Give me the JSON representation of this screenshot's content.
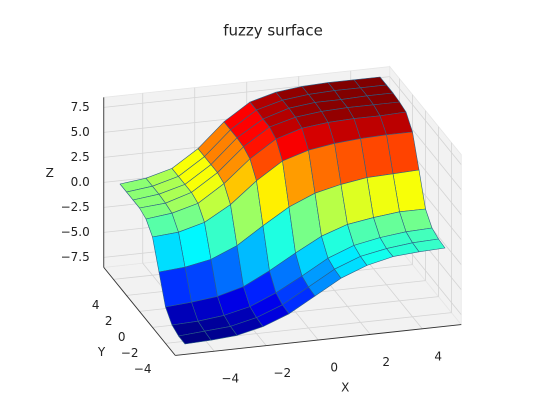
{
  "chart_data": {
    "type": "surface",
    "title": "fuzzy surface",
    "x_label": "X",
    "y_label": "Y",
    "z_label": "Z",
    "x": [
      -5,
      -4,
      -3,
      -2,
      -1,
      0,
      1,
      2,
      3,
      4,
      5
    ],
    "y": [
      -5,
      -4,
      -3,
      -2,
      -1,
      0,
      1,
      2,
      3,
      4,
      5
    ],
    "z": [
      [
        -7.9,
        -7.8,
        -7.6,
        -7.0,
        -6.0,
        -4.5,
        -3.0,
        -2.0,
        -1.4,
        -1.2,
        -1.1
      ],
      [
        -7.9,
        -7.7,
        -7.5,
        -6.9,
        -5.9,
        -4.4,
        -2.9,
        -1.9,
        -1.4,
        -1.1,
        -1.0
      ],
      [
        -7.6,
        -7.5,
        -7.2,
        -6.6,
        -5.5,
        -4.1,
        -2.6,
        -1.6,
        -1.1,
        -0.8,
        -0.7
      ],
      [
        -6.6,
        -6.4,
        -6.1,
        -5.4,
        -4.1,
        -2.6,
        -1.2,
        -0.3,
        0.1,
        0.4,
        0.4
      ],
      [
        -3.9,
        -3.7,
        -3.2,
        -2.1,
        -0.4,
        1.2,
        2.3,
        2.9,
        3.3,
        3.4,
        3.5
      ],
      [
        -1.2,
        -1.0,
        -0.3,
        1.2,
        3.3,
        5.0,
        5.8,
        6.2,
        6.4,
        6.5,
        6.5
      ],
      [
        -0.2,
        0.1,
        0.8,
        2.5,
        4.7,
        6.4,
        7.2,
        7.5,
        7.6,
        7.6,
        7.7
      ],
      [
        0.1,
        0.3,
        1.1,
        2.8,
        5.1,
        6.8,
        7.5,
        7.8,
        7.9,
        7.9,
        7.9
      ],
      [
        0.1,
        0.4,
        1.1,
        2.8,
        5.2,
        6.8,
        7.6,
        7.9,
        7.9,
        8.0,
        8.0
      ],
      [
        0.1,
        0.4,
        1.1,
        2.8,
        5.2,
        6.9,
        7.6,
        7.9,
        8.0,
        8.0,
        8.0
      ],
      [
        0.1,
        0.4,
        1.1,
        2.8,
        5.2,
        6.9,
        7.6,
        7.9,
        8.0,
        8.0,
        8.0
      ]
    ],
    "xlim": [
      -5.5,
      5.5
    ],
    "ylim": [
      -5.5,
      5.5
    ],
    "zlim": [
      -8.5,
      8.5
    ],
    "xticks": [
      {
        "value": -4,
        "label": "−4"
      },
      {
        "value": -2,
        "label": "−2"
      },
      0,
      2,
      4
    ],
    "yticks": [
      {
        "value": -4,
        "label": "−4"
      },
      {
        "value": -2,
        "label": "−2"
      },
      0,
      2,
      4
    ],
    "zticks": [
      {
        "value": -7.5,
        "label": "−7.5"
      },
      {
        "value": -5,
        "label": "−5.0"
      },
      {
        "value": -2.5,
        "label": "−2.5"
      },
      {
        "value": 0,
        "label": "0.0"
      },
      2.5,
      {
        "value": 5,
        "label": "5.0"
      },
      7.5
    ],
    "colormap": "jet",
    "edgecolor": "#2b5f86",
    "grid": true
  }
}
